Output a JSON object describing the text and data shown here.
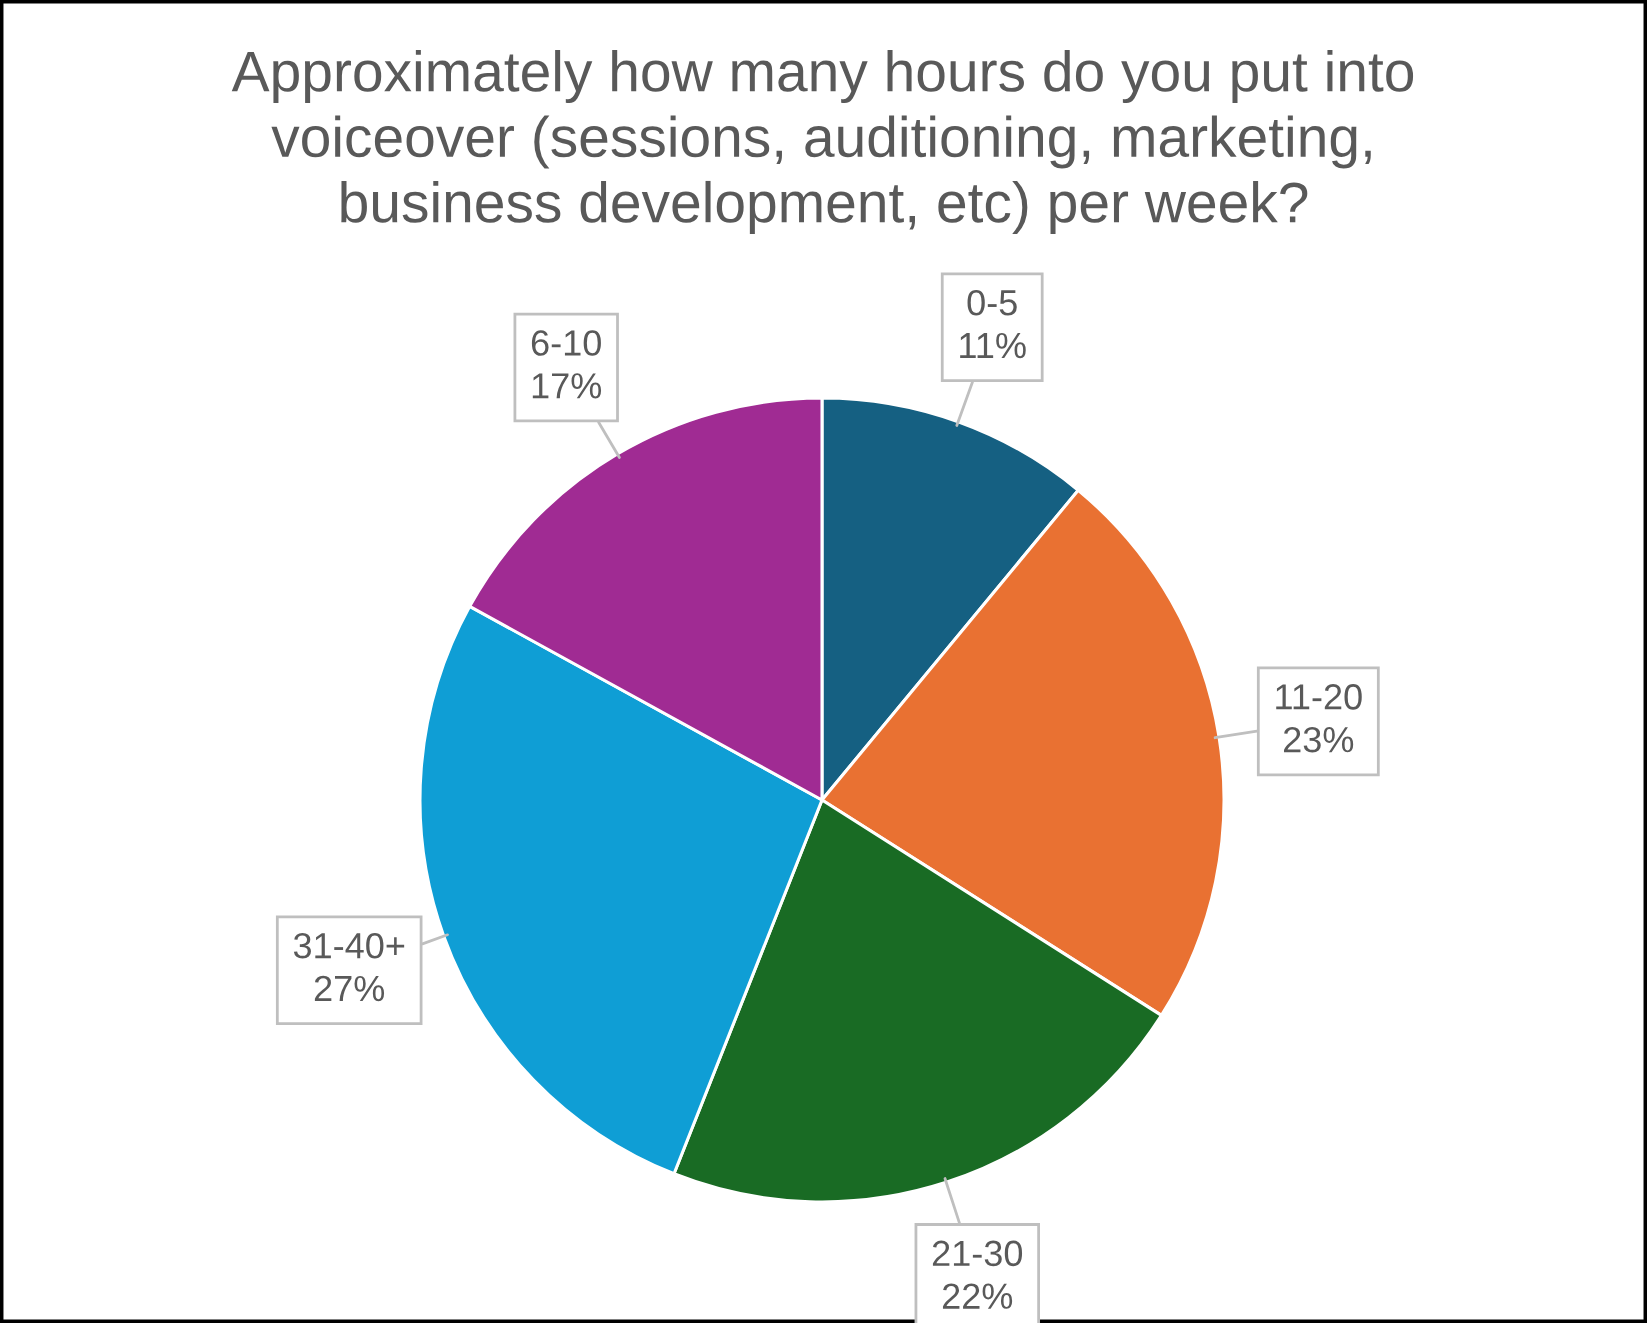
{
  "chart_data": {
    "type": "pie",
    "title": "Approximately how many hours do you put into\nvoiceover (sessions, auditioning, marketing,\nbusiness development, etc) per week?",
    "categories": [
      "0-5",
      "11-20",
      "21-30",
      "31-40+",
      "6-10"
    ],
    "values": [
      11,
      23,
      22,
      27,
      17
    ],
    "colors": [
      "#156082",
      "#e97132",
      "#196b24",
      "#0f9ed5",
      "#a02b93"
    ],
    "value_labels": [
      "11%",
      "23%",
      "22%",
      "27%",
      "17%"
    ]
  }
}
